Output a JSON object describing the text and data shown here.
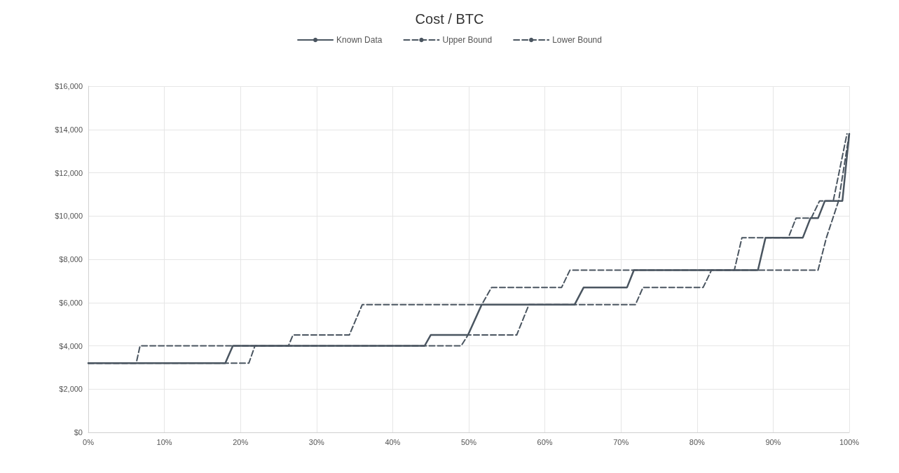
{
  "chart_data": {
    "type": "line",
    "title": "Cost / BTC",
    "legend": "top",
    "grid": true,
    "marker": "none",
    "xlim": [
      0,
      100
    ],
    "xticks": [
      {
        "value": 0,
        "label": "0%"
      },
      {
        "value": 10,
        "label": "10%"
      },
      {
        "value": 20,
        "label": "20%"
      },
      {
        "value": 30,
        "label": "30%"
      },
      {
        "value": 40,
        "label": "40%"
      },
      {
        "value": 50,
        "label": "50%"
      },
      {
        "value": 60,
        "label": "60%"
      },
      {
        "value": 70,
        "label": "70%"
      },
      {
        "value": 80,
        "label": "80%"
      },
      {
        "value": 90,
        "label": "90%"
      },
      {
        "value": 100,
        "label": "100%"
      }
    ],
    "ylim": [
      0,
      16000
    ],
    "yticks": [
      {
        "value": 0,
        "label": "$0"
      },
      {
        "value": 2000,
        "label": "$2,000"
      },
      {
        "value": 4000,
        "label": "$4,000"
      },
      {
        "value": 6000,
        "label": "$6,000"
      },
      {
        "value": 8000,
        "label": "$8,000"
      },
      {
        "value": 10000,
        "label": "$10,000"
      },
      {
        "value": 12000,
        "label": "$12,000"
      },
      {
        "value": 14000,
        "label": "$14,000"
      },
      {
        "value": 16000,
        "label": "$16,000"
      }
    ],
    "series": [
      {
        "name": "Known Data",
        "color": "#4a5560",
        "line_style": "solid",
        "x": [
          0,
          18,
          19,
          44.2,
          45,
          49.9,
          51.7,
          63.9,
          65.1,
          70.8,
          71.7,
          88,
          89,
          93.9,
          94.9,
          95.9,
          96.8,
          99.1,
          100
        ],
        "values": [
          3200,
          3200,
          4000,
          4000,
          4500,
          4500,
          5900,
          5900,
          6700,
          6700,
          7500,
          7500,
          9000,
          9000,
          9900,
          9900,
          10700,
          10700,
          13800
        ]
      },
      {
        "name": "Upper Bound",
        "color": "#4a5560",
        "line_style": "dashed",
        "x": [
          0,
          6.3,
          6.8,
          26.3,
          26.9,
          34.3,
          36,
          51.7,
          53,
          62.2,
          63.3,
          84.9,
          85.9,
          92,
          93,
          95,
          96.1,
          97.9,
          99.7
        ],
        "values": [
          3200,
          3200,
          4000,
          4000,
          4500,
          4500,
          5900,
          5900,
          6700,
          6700,
          7500,
          7500,
          9000,
          9000,
          9900,
          9900,
          10700,
          10700,
          13800
        ]
      },
      {
        "name": "Lower Bound",
        "color": "#4a5560",
        "line_style": "dashed",
        "x": [
          0,
          21.1,
          21.9,
          49,
          49.9,
          56.3,
          57.9,
          71.9,
          72.9,
          80.8,
          81.9,
          95.9,
          97,
          98.6,
          100
        ],
        "values": [
          3200,
          3200,
          4000,
          4000,
          4500,
          4500,
          5900,
          5900,
          6700,
          6700,
          7500,
          7500,
          9000,
          10700,
          13800
        ]
      }
    ]
  }
}
